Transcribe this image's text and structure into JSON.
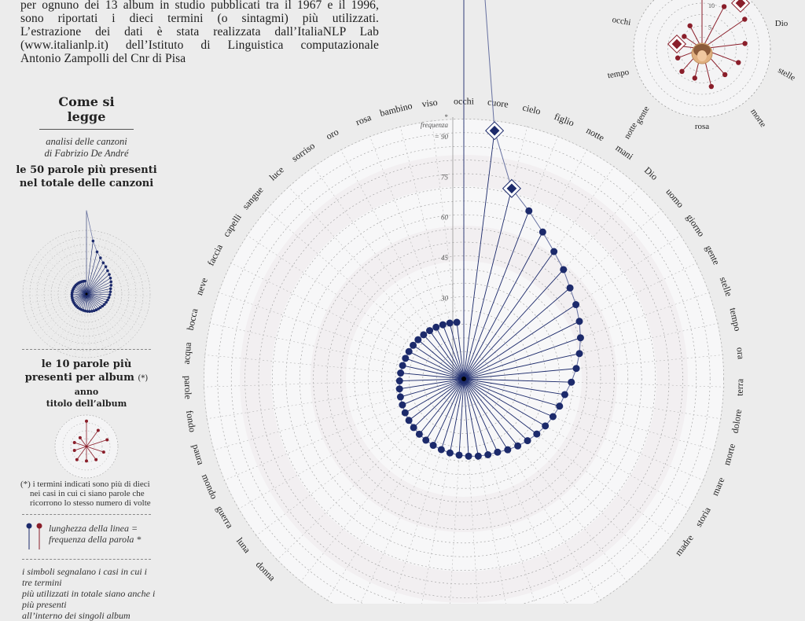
{
  "intro": {
    "lines": [
      "per ognuno dei 13 album in studio pubblicati tra il 1967 e il 1996,",
      "sono riportati i dieci termini (o sintagmi) più utilizzati.",
      "L’estrazione dei dati è stata realizzata dall’ItaliaNLP Lab",
      "(www.italianlp.it) dell’Istituto di Linguistica computazionale",
      "Antonio Zampolli del Cnr di Pisa"
    ]
  },
  "legend": {
    "title": "Come si legge",
    "subtitle_line1": "analisi delle canzoni",
    "subtitle_line2": "di Fabrizio De André",
    "heading_50_line1": "le 50 parole più presenti",
    "heading_50_line2": "nel totale delle canzoni",
    "heading_10_line1": "le 10 parole più",
    "heading_10_line2": "presenti per album",
    "heading_10_mark": "(*)",
    "anno": "anno",
    "titolo": "titolo dell’album",
    "note_line1": "(*) i termini indicati sono più di dieci",
    "note_line2": "nei casi in cui ci siano parole che",
    "note_line3": "ricorrono lo stesso numero di volte",
    "length_line1": "lunghezza della linea =",
    "length_line2": "frequenza della parola *",
    "symbols_line1": "i simboli segnalano i casi in cui i tre termini",
    "symbols_line2": "più utilizzati in totale siano anche i più presenti",
    "symbols_line3": "all’interno dei singoli album"
  },
  "colors": {
    "background": "#ececec",
    "navy": "#1c2a6b",
    "maroon": "#8a1e2a",
    "grid": "#9a9a9a"
  },
  "chart_data": [
    {
      "type": "radial",
      "title": "",
      "axis_label": "frequenza",
      "axis_mark": "*",
      "axis_ticks": [
        30,
        45,
        60,
        75,
        90
      ],
      "rlim": [
        0,
        95
      ],
      "grid": true,
      "categories": [
        "occhi",
        "cuore",
        "cielo",
        "figlio",
        "notte",
        "mani",
        "Dio",
        "uomo",
        "giorno",
        "gente",
        "stelle",
        "tempo",
        "ora",
        "terra",
        "dolore",
        "morte",
        "mare",
        "storia",
        "madre",
        "",
        "",
        "",
        "",
        "",
        "",
        "",
        "",
        "",
        "",
        "",
        "",
        "",
        "donna",
        "luna",
        "guerra",
        "mondo",
        "paura",
        "fondo",
        "parole",
        "acqua",
        "bocca",
        "neve",
        "faccia",
        "capelli",
        "sangue",
        "luce",
        "sorriso",
        "oro",
        "rosa",
        "bambino",
        "viso"
      ],
      "series": [
        {
          "values": [
            [
              0,
              250
            ],
            [
              1,
              93
            ],
            [
              2,
              73
            ],
            [
              3,
              67
            ],
            [
              4,
              62
            ],
            [
              5,
              58
            ],
            [
              6,
              55
            ],
            [
              7,
              52
            ],
            [
              8,
              50
            ],
            [
              9,
              48
            ],
            [
              10,
              46
            ],
            [
              11,
              44
            ],
            [
              12,
              42
            ],
            [
              13,
              40
            ],
            [
              14,
              38
            ],
            [
              15,
              37
            ],
            [
              16,
              36
            ],
            [
              17,
              35
            ],
            [
              18,
              34
            ],
            [
              19,
              33
            ],
            [
              20,
              32
            ],
            [
              21,
              31
            ],
            [
              22,
              30
            ],
            [
              23,
              29.6
            ],
            [
              24,
              29.2
            ],
            [
              25,
              28.8
            ],
            [
              26,
              28.4
            ],
            [
              27,
              28
            ],
            [
              28,
              27.6
            ],
            [
              29,
              27.2
            ],
            [
              30,
              26.8
            ],
            [
              31,
              26.4
            ],
            [
              32,
              26
            ],
            [
              33,
              25.6
            ],
            [
              34,
              25.2
            ],
            [
              35,
              24.8
            ],
            [
              36,
              24.5
            ],
            [
              37,
              24.2
            ],
            [
              38,
              23.9
            ],
            [
              39,
              23.6
            ],
            [
              40,
              23.3
            ],
            [
              41,
              23
            ],
            [
              42,
              22.8
            ],
            [
              43,
              22.6
            ],
            [
              44,
              22.4
            ],
            [
              45,
              22.2
            ],
            [
              46,
              22
            ],
            [
              47,
              21.8
            ],
            [
              48,
              21.6
            ],
            [
              49,
              21.4
            ],
            [
              50,
              21.2
            ]
          ]
        }
      ]
    },
    {
      "type": "radial",
      "title": "",
      "categories": [
        "Dio",
        "stelle",
        "morte",
        "rosa",
        "gente",
        "notte",
        "tempo",
        "occhi"
      ],
      "axis_ticks": [
        5,
        10,
        15
      ],
      "series": [
        {
          "values": [
            [
              0,
              14
            ],
            [
              1,
              11
            ],
            [
              2,
              12
            ],
            [
              3,
              10
            ],
            [
              4,
              9
            ],
            [
              5,
              8
            ],
            [
              6,
              9
            ],
            [
              7,
              7
            ],
            [
              8,
              7
            ],
            [
              9,
              6
            ],
            [
              10,
              6
            ],
            [
              11,
              5
            ],
            [
              12,
              6
            ]
          ]
        }
      ]
    },
    {
      "type": "radial",
      "title": "",
      "categories": [],
      "series": [
        {
          "values": [
            [
              0,
              200
            ],
            [
              1,
              80
            ],
            [
              2,
              65
            ],
            [
              3,
              58
            ],
            [
              4,
              53
            ],
            [
              5,
              50
            ],
            [
              6,
              47
            ],
            [
              7,
              45
            ],
            [
              8,
              43
            ],
            [
              9,
              41
            ],
            [
              10,
              39
            ],
            [
              11,
              37
            ],
            [
              12,
              36
            ],
            [
              13,
              35
            ],
            [
              14,
              34
            ],
            [
              15,
              33
            ],
            [
              16,
              32
            ],
            [
              17,
              31
            ],
            [
              18,
              30
            ],
            [
              19,
              29
            ],
            [
              20,
              28.5
            ],
            [
              21,
              28
            ],
            [
              22,
              27.5
            ],
            [
              23,
              27
            ],
            [
              24,
              26.5
            ],
            [
              25,
              26
            ],
            [
              26,
              25.5
            ],
            [
              27,
              25
            ],
            [
              28,
              24.6
            ],
            [
              29,
              24.3
            ],
            [
              30,
              24
            ],
            [
              31,
              23.7
            ],
            [
              32,
              23.4
            ],
            [
              33,
              23.1
            ],
            [
              34,
              22.8
            ],
            [
              35,
              22.5
            ],
            [
              36,
              22.2
            ],
            [
              37,
              22
            ],
            [
              38,
              21.8
            ],
            [
              39,
              21.6
            ],
            [
              40,
              21.4
            ],
            [
              41,
              21.2
            ],
            [
              42,
              21
            ],
            [
              43,
              20.8
            ],
            [
              44,
              20.6
            ],
            [
              45,
              20.4
            ],
            [
              46,
              20.2
            ],
            [
              47,
              20
            ],
            [
              48,
              19.8
            ],
            [
              49,
              19.6
            ],
            [
              50,
              19.4
            ]
          ]
        }
      ]
    },
    {
      "type": "radial",
      "title": "",
      "categories": [],
      "series": [
        {
          "values": [
            [
              0,
              14
            ],
            [
              1,
              11
            ],
            [
              2,
              12
            ],
            [
              3,
              10
            ],
            [
              4,
              9
            ],
            [
              5,
              8
            ],
            [
              6,
              9
            ],
            [
              7,
              7
            ],
            [
              8,
              7
            ],
            [
              9,
              6
            ]
          ]
        }
      ]
    }
  ]
}
